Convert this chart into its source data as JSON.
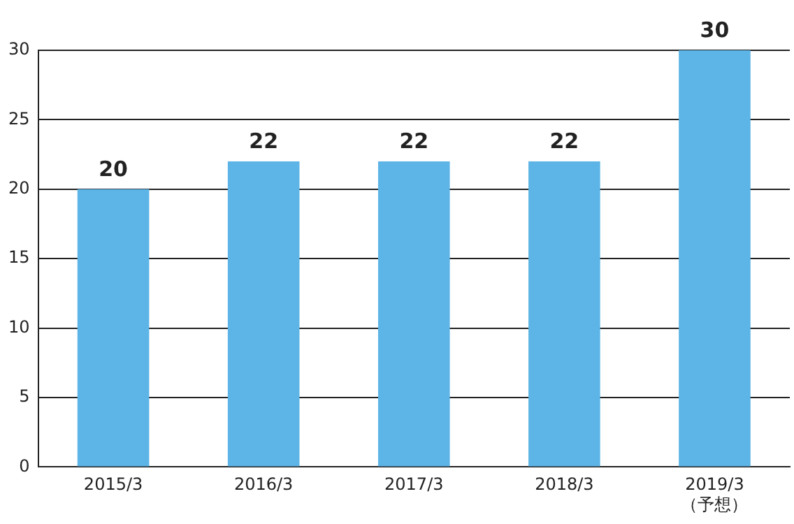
{
  "chart_data": {
    "type": "bar",
    "categories": [
      "2015/3",
      "2016/3",
      "2017/3",
      "2018/3",
      "2019/3\n（予想）"
    ],
    "values": [
      20,
      22,
      22,
      22,
      30
    ],
    "color": "#5db4e6",
    "ylim": [
      0,
      30
    ],
    "yticks": [
      0,
      5,
      10,
      15,
      20,
      25,
      30
    ],
    "grid": "y",
    "data_labels": true,
    "legend": false
  }
}
